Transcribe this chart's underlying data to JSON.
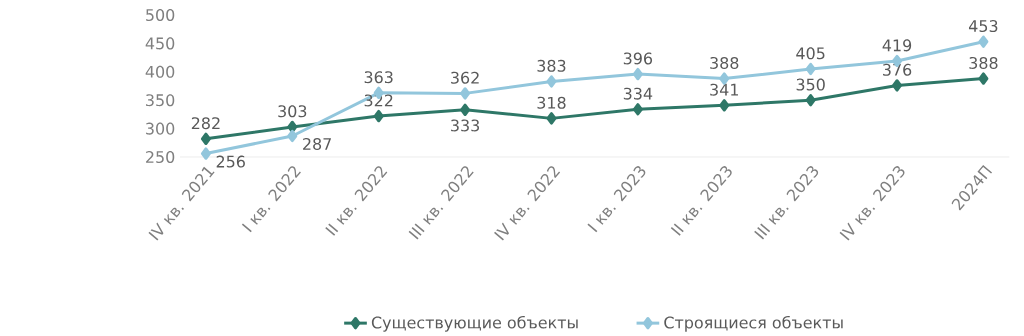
{
  "chart_data": {
    "type": "line",
    "categories": [
      "IV кв. 2021",
      "I кв. 2022",
      "II кв. 2022",
      "III кв. 2022",
      "IV кв. 2022",
      "I кв. 2023",
      "II кв. 2023",
      "III кв. 2023",
      "IV кв. 2023",
      "2024П"
    ],
    "series": [
      {
        "name": "Существующие объекты",
        "color": "#2e7767",
        "values": [
          282,
          303,
          322,
          333,
          318,
          334,
          341,
          350,
          376,
          388
        ]
      },
      {
        "name": "Строящиеся объекты",
        "color": "#92c6dc",
        "values": [
          256,
          287,
          363,
          362,
          383,
          396,
          388,
          405,
          419,
          453
        ]
      }
    ],
    "ylim": [
      250,
      500
    ],
    "yticks": [
      250,
      300,
      350,
      400,
      450,
      500
    ],
    "grid": false,
    "legend": "bottom",
    "marker": "diamond",
    "line_style": "solid",
    "data_labels": true
  }
}
